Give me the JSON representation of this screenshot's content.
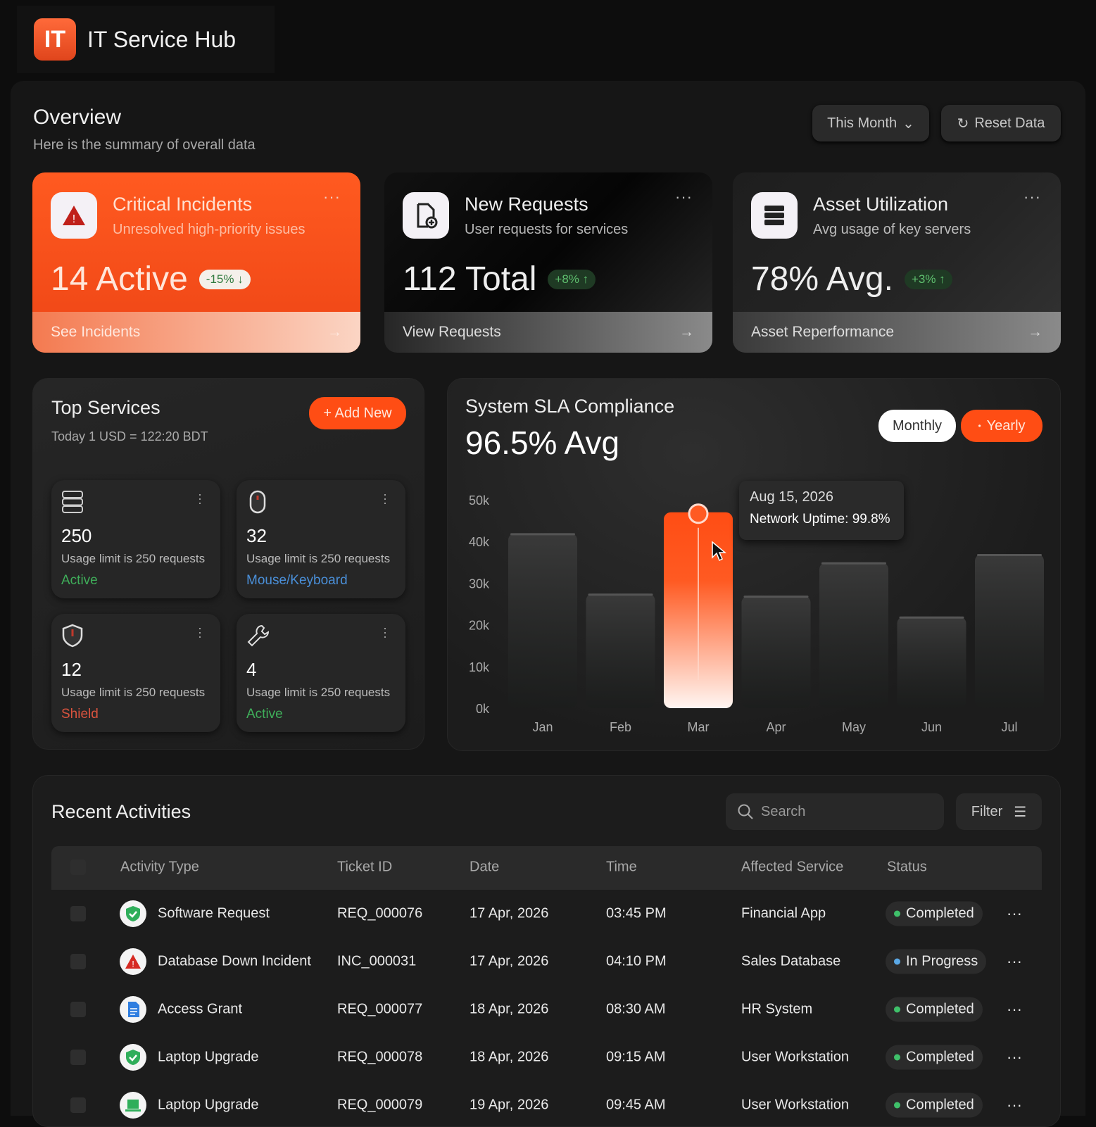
{
  "app": {
    "title": "IT Service Hub",
    "logo_text": "IT"
  },
  "overview": {
    "title": "Overview",
    "subtitle": "Here is the summary of overall data",
    "period": "This Month",
    "reset": "Reset Data"
  },
  "kpis": [
    {
      "title": "Critical Incidents",
      "subtitle": "Unresolved high-priority issues",
      "value": "14 Active",
      "badge": "-15% ↓",
      "link": "See Incidents",
      "icon": "warning-icon"
    },
    {
      "title": "New Requests",
      "subtitle": "User requests for services",
      "value": "112 Total",
      "badge": "+8% ↑",
      "link": "View Requests",
      "icon": "file-add-icon"
    },
    {
      "title": "Asset Utilization",
      "subtitle": "Avg usage of key servers",
      "value": "78% Avg.",
      "badge": "+3% ↑",
      "link": "Asset Reperformance",
      "icon": "server-icon"
    }
  ],
  "top_services": {
    "title": "Top Services",
    "subtitle": "Today 1 USD = 122:20 BDT",
    "add": "+ Add New",
    "items": [
      {
        "value": "250",
        "usage": "Usage limit is 250 requests",
        "label": "Active",
        "label_color": "#3fae5a",
        "icon": "server-icon"
      },
      {
        "value": "32",
        "usage": "Usage limit is 250 requests",
        "label": "Mouse/Keyboard",
        "label_color": "#4a8fd8",
        "icon": "mouse-icon"
      },
      {
        "value": "12",
        "usage": "Usage limit is 250 requests",
        "label": "Shield",
        "label_color": "#d9533e",
        "icon": "shield-icon"
      },
      {
        "value": "4",
        "usage": "Usage limit is 250 requests",
        "label": "Active",
        "label_color": "#3fae5a",
        "icon": "wrench-icon"
      }
    ]
  },
  "sla": {
    "title": "System SLA Compliance",
    "value": "96.5% Avg",
    "toggle": [
      "Monthly",
      "Yearly"
    ],
    "active_toggle": "Yearly",
    "tooltip": {
      "date": "Aug 15, 2026",
      "text": "Network Uptime: 99.8%"
    }
  },
  "chart_data": {
    "type": "bar",
    "categories": [
      "Jan",
      "Feb",
      "Mar",
      "Apr",
      "May",
      "Jun",
      "Jul"
    ],
    "values": [
      42000,
      27500,
      47000,
      27000,
      35000,
      22000,
      37000
    ],
    "highlight": "Mar",
    "ylim": [
      0,
      50000
    ],
    "yticks": [
      "0k",
      "10k",
      "20k",
      "30k",
      "40k",
      "50k"
    ],
    "grid": false,
    "accent": "#ff4d14"
  },
  "activities": {
    "title": "Recent Activities",
    "search_placeholder": "Search",
    "filter": "Filter",
    "columns": [
      "Activity Type",
      "Ticket ID",
      "Date",
      "Time",
      "Affected Service",
      "Status"
    ],
    "rows": [
      {
        "type": "Software Request",
        "id": "REQ_000076",
        "date": "17 Apr, 2026",
        "time": "03:45 PM",
        "service": "Financial App",
        "status": "Completed",
        "icon": "check-shield-icon"
      },
      {
        "type": "Database Down Incident",
        "id": "INC_000031",
        "date": "17 Apr, 2026",
        "time": "04:10 PM",
        "service": "Sales Database",
        "status": "In Progress",
        "icon": "warning-icon"
      },
      {
        "type": "Access Grant",
        "id": "REQ_000077",
        "date": "18 Apr, 2026",
        "time": "08:30 AM",
        "service": "HR System",
        "status": "Completed",
        "icon": "document-icon"
      },
      {
        "type": "Laptop Upgrade",
        "id": "REQ_000078",
        "date": "18 Apr, 2026",
        "time": "09:15 AM",
        "service": "User Workstation",
        "status": "Completed",
        "icon": "check-shield-icon"
      },
      {
        "type": "Laptop Upgrade",
        "id": "REQ_000079",
        "date": "19 Apr, 2026",
        "time": "09:45 AM",
        "service": "User Workstation",
        "status": "Completed",
        "icon": "laptop-icon"
      }
    ]
  }
}
